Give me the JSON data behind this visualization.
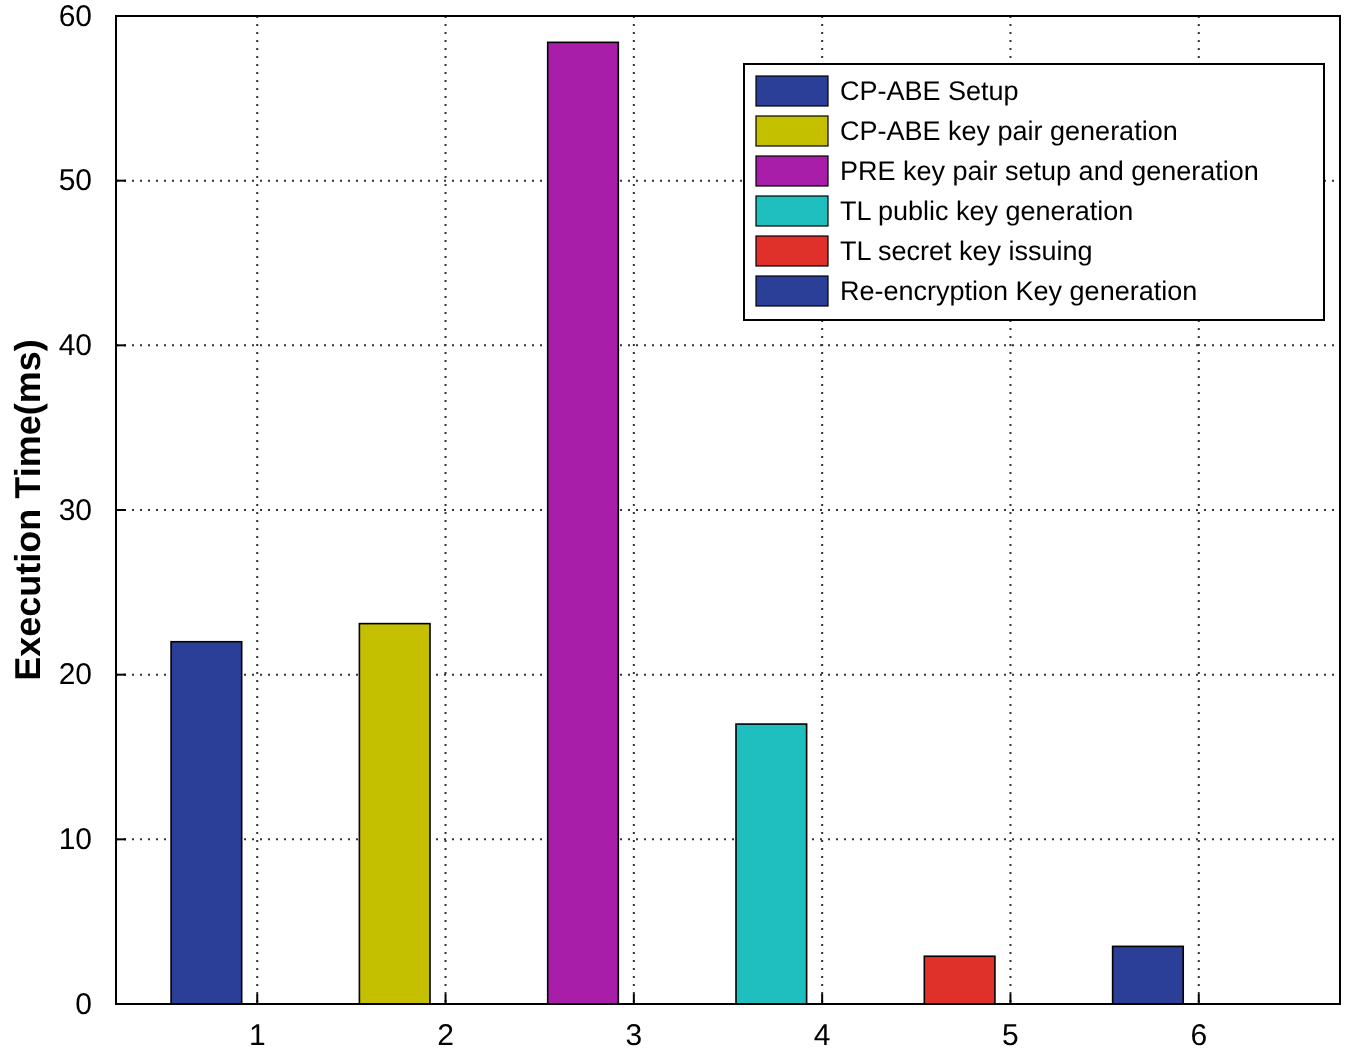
{
  "chart_data": {
    "type": "bar",
    "ylabel": "Execution Time(ms)",
    "categories": [
      "1",
      "2",
      "3",
      "4",
      "5",
      "6"
    ],
    "series": [
      {
        "name": "CP-ABE Setup",
        "color": "#2b3f99",
        "values": [
          22,
          null,
          null,
          null,
          null,
          null
        ]
      },
      {
        "name": "CP-ABE key pair generation",
        "color": "#c4c000",
        "values": [
          null,
          23.1,
          null,
          null,
          null,
          null
        ]
      },
      {
        "name": "PRE key pair setup and generation",
        "color": "#a81ea8",
        "values": [
          null,
          null,
          58.4,
          null,
          null,
          null
        ]
      },
      {
        "name": "TL public key generation",
        "color": "#20bfbf",
        "values": [
          null,
          null,
          null,
          17,
          null,
          null
        ]
      },
      {
        "name": "TL secret key issuing",
        "color": "#e0302a",
        "values": [
          null,
          null,
          null,
          null,
          2.9,
          null
        ]
      },
      {
        "name": "Re-encryption Key generation",
        "color": "#2b3f99",
        "values": [
          null,
          null,
          null,
          null,
          null,
          3.5
        ]
      }
    ],
    "ylim": [
      0,
      60
    ],
    "yticks": [
      0,
      10,
      20,
      30,
      40,
      50,
      60
    ],
    "grid": true,
    "legend": "top right"
  }
}
